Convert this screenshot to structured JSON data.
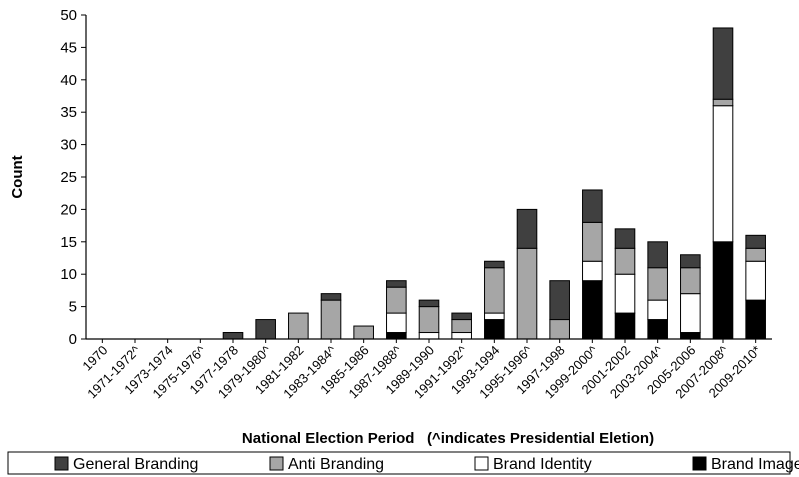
{
  "chart_data": {
    "type": "bar",
    "stacked": true,
    "title": "",
    "xlabel": "National Election Period   (^indicates Presidential Eletion)",
    "ylabel": "Count",
    "ylim": [
      0,
      50
    ],
    "yticks": [
      0,
      5,
      10,
      15,
      20,
      25,
      30,
      35,
      40,
      45,
      50
    ],
    "grid": false,
    "legend_position": "bottom",
    "categories": [
      "1970",
      "1971-1972^",
      "1973-1974",
      "1975-1976^",
      "1977-1978",
      "1979-1980^",
      "1981-1982",
      "1983-1984^",
      "1985-1986",
      "1987-1988^",
      "1989-1990",
      "1991-1992^",
      "1993-1994",
      "1995-1996^",
      "1997-1998",
      "1999-2000^",
      "2001-2002",
      "2003-2004^",
      "2005-2006",
      "2007-2008^",
      "2009-2010*"
    ],
    "series": [
      {
        "name": "Brand Image",
        "color": "#000000",
        "values": [
          0,
          0,
          0,
          0,
          0,
          0,
          0,
          0,
          0,
          1,
          0,
          0,
          3,
          0,
          0,
          9,
          4,
          3,
          1,
          15,
          6
        ]
      },
      {
        "name": "Brand Identity",
        "color": "#ffffff",
        "values": [
          0,
          0,
          0,
          0,
          0,
          0,
          0,
          0,
          0,
          3,
          1,
          1,
          1,
          0,
          0,
          3,
          6,
          3,
          6,
          21,
          6
        ]
      },
      {
        "name": "Anti Branding",
        "color": "#a6a6a6",
        "values": [
          0,
          0,
          0,
          0,
          0,
          0,
          4,
          6,
          2,
          4,
          4,
          2,
          7,
          14,
          3,
          6,
          4,
          5,
          4,
          1,
          2
        ]
      },
      {
        "name": "General Branding",
        "color": "#404040",
        "values": [
          0,
          0,
          0,
          0,
          1,
          3,
          0,
          1,
          0,
          1,
          1,
          1,
          1,
          6,
          6,
          5,
          3,
          4,
          2,
          11,
          2
        ]
      }
    ],
    "legend_order": [
      "General Branding",
      "Anti Branding",
      "Brand Identity",
      "Brand Image"
    ]
  }
}
